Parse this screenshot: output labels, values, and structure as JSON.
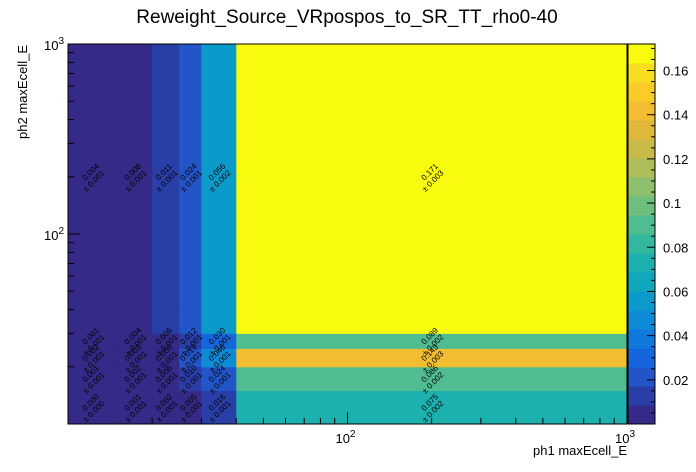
{
  "chart_data": {
    "type": "heatmap",
    "title": "Reweight_Source_VRpospos_to_SR_TT_rho0-40",
    "xlabel": "ph1 maxEcell_E",
    "ylabel": "ph2 maxEcell_E",
    "x_scale": "log",
    "y_scale": "log",
    "xlim": [
      10,
      1000
    ],
    "ylim": [
      10,
      1000
    ],
    "x_edges": [
      10,
      15,
      20,
      25,
      30,
      40,
      1000
    ],
    "y_edges": [
      10,
      15,
      20,
      25,
      30,
      40,
      1000
    ],
    "x_ticks": [
      {
        "value": 100,
        "label": "10²"
      },
      {
        "value": 1000,
        "label": "10³"
      }
    ],
    "y_ticks": [
      {
        "value": 100,
        "label": "10²"
      },
      {
        "value": 1000,
        "label": "10³"
      }
    ],
    "values": [
      [
        0.0,
        0.001,
        0.002,
        0.005,
        0.016,
        0.075
      ],
      [
        0.001,
        0.002,
        0.006,
        0.01,
        0.024,
        0.086
      ],
      [
        0.002,
        0.003,
        0.008,
        0.019,
        0.046,
        0.143
      ],
      [
        0.001,
        0.004,
        0.006,
        0.012,
        0.03,
        0.089
      ],
      [
        0.004,
        0.008,
        0.011,
        0.024,
        0.056,
        0.171
      ],
      [
        0.004,
        0.008,
        0.011,
        0.024,
        0.056,
        0.171
      ]
    ],
    "value_labels": [
      [
        "0.000",
        "0.001",
        "0.002",
        "0.005",
        "0.016",
        "0.075"
      ],
      [
        "0.001",
        "0.002",
        "0.006",
        "0.010",
        "0.024",
        "0.086"
      ],
      [
        "0.002",
        "0.003",
        "0.008",
        "0.019",
        "0.046",
        "0.143"
      ],
      [
        "0.001",
        "0.004",
        "0.006",
        "0.012",
        "0.030",
        "0.089"
      ],
      [
        "",
        "",
        "",
        "",
        "",
        ""
      ],
      [
        "0.004",
        "0.008",
        "0.011",
        "0.024",
        "0.056",
        "0.171"
      ]
    ],
    "error_labels": [
      [
        "± 0.000",
        "± 0.001",
        "± 0.001",
        "± 0.001",
        "± 0.001",
        "± 0.002"
      ],
      [
        "± 0.001",
        "± 0.001",
        "± 0.001",
        "± 0.001",
        "± 0.001",
        "± 0.002"
      ],
      [
        "± 0.001",
        "± 0.001",
        "± 0.001",
        "± 0.001",
        "± 0.001",
        "± 0.003"
      ],
      [
        "± 0.001",
        "± 0.001",
        "± 0.001",
        "± 0.001",
        "± 0.001",
        "± 0.002"
      ],
      [
        "",
        "",
        "",
        "",
        "",
        ""
      ],
      [
        "± 0.001",
        "± 0.001",
        "± 0.001",
        "± 0.001",
        "± 0.002",
        "± 0.003"
      ]
    ],
    "zlim": [
      0,
      0.172
    ],
    "z_ticks": [
      0.02,
      0.04,
      0.06,
      0.08,
      0.1,
      0.12,
      0.14,
      0.16
    ],
    "z_tick_labels": [
      "0.02",
      "0.04",
      "0.06",
      "0.08",
      "0.1",
      "0.12",
      "0.14",
      "0.16"
    ],
    "palette": [
      "#352a87",
      "#2a3ea8",
      "#2155c8",
      "#1566dc",
      "#1079dc",
      "#0d8bd6",
      "#0a9bcb",
      "#0fa8bd",
      "#1cb1ae",
      "#33b89f",
      "#4fbd8f",
      "#6ebf7e",
      "#8ebf6c",
      "#acbd5a",
      "#c8bb49",
      "#e0b93b",
      "#f2bd30",
      "#f9cc27",
      "#f7de1f",
      "#f9fb0e"
    ],
    "grid": false,
    "legend": "colorbar-right"
  }
}
